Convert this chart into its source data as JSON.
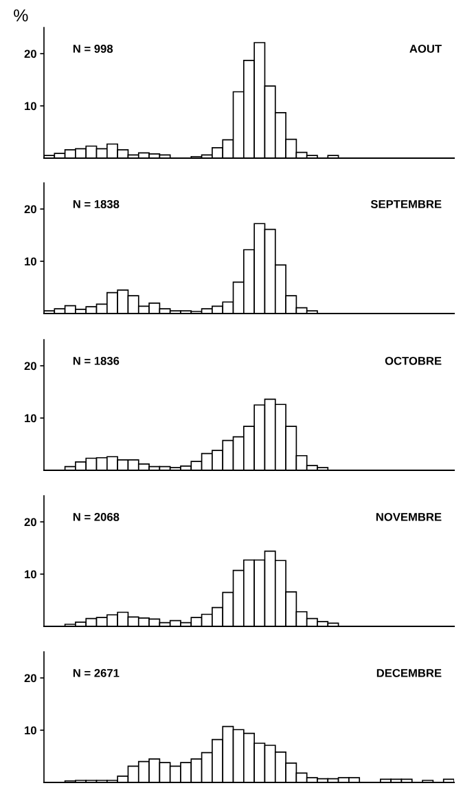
{
  "chart_data": [
    {
      "type": "bar",
      "title": "AOUT",
      "ylabel": "%",
      "annotations": [
        "N = 998"
      ],
      "categories": [
        null,
        null,
        null,
        null,
        null,
        null,
        null,
        null,
        null,
        null,
        null,
        null,
        null,
        null,
        null,
        null,
        null,
        null,
        null,
        null,
        null,
        null,
        null,
        null,
        null,
        null,
        null,
        null,
        null,
        null,
        null,
        null,
        null,
        null,
        null,
        null,
        null,
        null,
        null
      ],
      "color": "#ffffff",
      "ylim": [
        0,
        25
      ],
      "yticks": [
        10,
        20
      ],
      "tick_labels": "y",
      "values": [
        0.5,
        0.9,
        1.6,
        1.8,
        2.3,
        1.8,
        2.7,
        1.6,
        0.6,
        1.0,
        0.8,
        0.6,
        0,
        0,
        0.3,
        0.6,
        2.0,
        3.5,
        12.7,
        18.7,
        22.1,
        13.8,
        8.7,
        3.6,
        1.1,
        0.5,
        0,
        0.5,
        0,
        0,
        0,
        0,
        0,
        0,
        0,
        0,
        0,
        0,
        0
      ]
    },
    {
      "type": "bar",
      "title": "SEPTEMBRE",
      "annotations": [
        "N = 1838"
      ],
      "categories": [
        null,
        null,
        null,
        null,
        null,
        null,
        null,
        null,
        null,
        null,
        null,
        null,
        null,
        null,
        null,
        null,
        null,
        null,
        null,
        null,
        null,
        null,
        null,
        null,
        null,
        null,
        null,
        null,
        null,
        null,
        null,
        null,
        null,
        null,
        null,
        null,
        null,
        null,
        null
      ],
      "color": "#ffffff",
      "ylim": [
        0,
        25
      ],
      "yticks": [
        10,
        20
      ],
      "tick_labels": "y",
      "values": [
        0.5,
        0.9,
        1.5,
        0.8,
        1.3,
        1.8,
        4.0,
        4.5,
        3.4,
        1.4,
        2.0,
        0.9,
        0.5,
        0.5,
        0.4,
        0.9,
        1.4,
        2.2,
        6.0,
        12.2,
        17.2,
        16.1,
        9.3,
        3.4,
        1.1,
        0.5,
        0,
        0,
        0,
        0,
        0,
        0,
        0,
        0,
        0,
        0,
        0,
        0,
        0
      ]
    },
    {
      "type": "bar",
      "title": "OCTOBRE",
      "annotations": [
        "N = 1836"
      ],
      "categories": [
        null,
        null,
        null,
        null,
        null,
        null,
        null,
        null,
        null,
        null,
        null,
        null,
        null,
        null,
        null,
        null,
        null,
        null,
        null,
        null,
        null,
        null,
        null,
        null,
        null,
        null,
        null,
        null,
        null,
        null,
        null,
        null,
        null,
        null,
        null,
        null,
        null,
        null,
        null
      ],
      "color": "#ffffff",
      "ylim": [
        0,
        25
      ],
      "yticks": [
        10,
        20
      ],
      "tick_labels": "y",
      "values": [
        0,
        0,
        0.7,
        1.6,
        2.3,
        2.4,
        2.6,
        2.0,
        2.0,
        1.2,
        0.7,
        0.7,
        0.5,
        0.8,
        1.7,
        3.2,
        3.8,
        5.7,
        6.4,
        8.4,
        12.5,
        13.6,
        12.6,
        8.4,
        2.8,
        0.9,
        0.5,
        0,
        0,
        0,
        0,
        0,
        0,
        0,
        0,
        0,
        0,
        0,
        0
      ]
    },
    {
      "type": "bar",
      "title": "NOVEMBRE",
      "annotations": [
        "N = 2068"
      ],
      "categories": [
        null,
        null,
        null,
        null,
        null,
        null,
        null,
        null,
        null,
        null,
        null,
        null,
        null,
        null,
        null,
        null,
        null,
        null,
        null,
        null,
        null,
        null,
        null,
        null,
        null,
        null,
        null,
        null,
        null,
        null,
        null,
        null,
        null,
        null,
        null,
        null,
        null,
        null,
        null
      ],
      "color": "#ffffff",
      "ylim": [
        0,
        25
      ],
      "yticks": [
        10,
        20
      ],
      "tick_labels": "y",
      "values": [
        0,
        0,
        0.4,
        0.8,
        1.5,
        1.7,
        2.2,
        2.7,
        1.8,
        1.6,
        1.4,
        0.7,
        1.1,
        0.7,
        1.7,
        2.3,
        3.6,
        6.5,
        10.7,
        12.7,
        12.7,
        14.4,
        12.6,
        6.6,
        2.8,
        1.5,
        0.9,
        0.6,
        0,
        0,
        0,
        0,
        0,
        0,
        0,
        0,
        0,
        0,
        0
      ]
    },
    {
      "type": "bar",
      "title": "DECEMBRE",
      "annotations": [
        "N = 2671"
      ],
      "categories": [
        null,
        null,
        null,
        null,
        null,
        null,
        null,
        null,
        null,
        null,
        null,
        null,
        null,
        null,
        null,
        null,
        null,
        null,
        null,
        null,
        null,
        null,
        null,
        null,
        null,
        null,
        null,
        null,
        null,
        null,
        null,
        null,
        null,
        null,
        null,
        null,
        null,
        null,
        null
      ],
      "color": "#ffffff",
      "ylim": [
        0,
        25
      ],
      "yticks": [
        10,
        20
      ],
      "tick_labels": "y",
      "values": [
        0,
        0,
        0.3,
        0.4,
        0.4,
        0.4,
        0.4,
        1.2,
        3.1,
        4.0,
        4.5,
        3.8,
        3.1,
        3.8,
        4.5,
        5.7,
        8.2,
        10.7,
        10.1,
        9.4,
        7.5,
        7.1,
        5.8,
        3.7,
        1.8,
        0.9,
        0.7,
        0.7,
        0.9,
        0.9,
        0,
        0,
        0.6,
        0.6,
        0.6,
        0,
        0.4,
        0,
        0.6
      ]
    }
  ]
}
